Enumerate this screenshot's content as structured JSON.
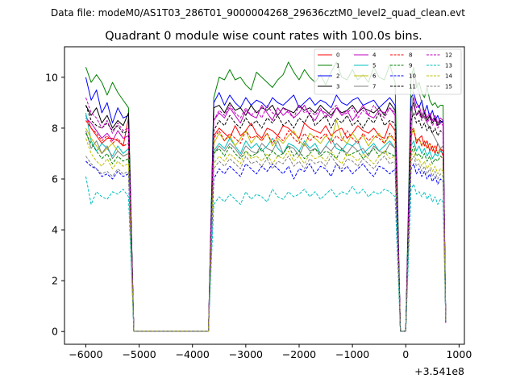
{
  "chart_data": {
    "type": "line",
    "suptitle": "Data file: modeM0/AS1T03_286T01_9000004268_29636cztM0_level2_quad_clean.evt",
    "title": "Quadrant 0 module wise count rates with 100.0s bins.",
    "xlabel": "",
    "ylabel": "",
    "x_offset_label": "+3.541e8",
    "xlim": [
      -6400,
      1100
    ],
    "ylim": [
      -0.5,
      11.2
    ],
    "xticks": [
      -6000,
      -5000,
      -4000,
      -3000,
      -2000,
      -1000,
      0,
      1000
    ],
    "xtick_labels": [
      "−6000",
      "−5000",
      "−4000",
      "−3000",
      "−2000",
      "−1000",
      "0",
      "1000"
    ],
    "yticks": [
      0,
      2,
      4,
      6,
      8,
      10
    ],
    "ytick_labels": [
      "0",
      "2",
      "4",
      "6",
      "8",
      "10"
    ],
    "grid": false,
    "legend_position": "top-right",
    "legend_columns": 4,
    "segments": [
      {
        "x_start": -6000,
        "x_end": -5200,
        "step": 100
      },
      {
        "x_start": -5100,
        "x_end": -3700,
        "step": 100
      },
      {
        "x_start": -3600,
        "x_end": -200,
        "step": 100
      },
      {
        "x_start": -100,
        "x_end": 0,
        "step": 100
      },
      {
        "x_start": 100,
        "x_end": 750,
        "step": 50
      }
    ],
    "series": [
      {
        "name": "0",
        "color": "#ff0000",
        "dash": "solid",
        "pre": [
          8.5,
          8.0,
          7.7,
          7.4,
          7.6,
          7.6,
          7.5,
          7.3,
          8.4
        ],
        "mid": [
          7.7,
          8.0,
          7.8,
          7.6,
          8.1,
          7.7,
          7.9,
          8.2,
          7.8,
          7.6,
          8.0,
          7.9,
          7.7,
          8.1,
          8.0,
          7.8,
          7.6,
          8.2,
          8.0,
          7.9,
          7.8,
          8.1,
          7.7,
          7.9,
          8.0,
          7.6,
          7.8,
          8.1,
          7.9,
          7.8,
          8.0,
          7.7,
          7.6,
          8.2,
          7.9
        ],
        "post": [
          7.9,
          8.0,
          7.4,
          7.6,
          7.7,
          7.3,
          7.5,
          7.1,
          7.3,
          7.0,
          7.4,
          7.2,
          6.9,
          7.0
        ]
      },
      {
        "name": "1",
        "color": "#008000",
        "dash": "solid",
        "pre": [
          10.4,
          9.8,
          10.1,
          9.8,
          9.3,
          9.8,
          9.4,
          9.1,
          8.8
        ],
        "mid": [
          9.2,
          10.0,
          9.9,
          10.3,
          9.9,
          10.0,
          9.7,
          9.5,
          10.2,
          10.0,
          9.8,
          9.6,
          9.9,
          10.1,
          10.6,
          10.2,
          9.9,
          10.3,
          10.0,
          9.8,
          10.1,
          9.7,
          10.2,
          10.6,
          10.0,
          9.9,
          10.3,
          9.9,
          10.1,
          9.8,
          10.4,
          10.0,
          9.9,
          10.5,
          9.8
        ],
        "post": [
          10.0,
          10.4,
          9.6,
          9.8,
          9.4,
          9.2,
          9.6,
          9.1,
          8.9,
          9.0,
          8.8,
          8.9,
          8.9,
          9.0
        ]
      },
      {
        "name": "2",
        "color": "#0000ff",
        "dash": "solid",
        "pre": [
          10.0,
          9.1,
          9.5,
          8.6,
          9.0,
          8.2,
          8.8,
          8.4,
          8.5
        ],
        "mid": [
          9.0,
          9.4,
          8.9,
          9.3,
          9.0,
          8.8,
          9.2,
          8.9,
          9.1,
          9.0,
          8.8,
          9.2,
          9.0,
          8.9,
          9.1,
          9.3,
          8.8,
          9.0,
          9.2,
          8.9,
          9.1,
          9.0,
          8.8,
          9.3,
          9.0,
          8.9,
          9.1,
          9.2,
          8.9,
          9.0,
          9.1,
          8.8,
          9.0,
          9.2,
          8.9
        ],
        "post": [
          9.2,
          9.4,
          9.0,
          8.8,
          9.1,
          8.6,
          8.9,
          8.4,
          8.7,
          8.3,
          8.5,
          8.2,
          8.3,
          8.3
        ]
      },
      {
        "name": "3",
        "color": "#000000",
        "dash": "solid",
        "pre": [
          8.9,
          8.5,
          8.8,
          8.2,
          8.5,
          8.0,
          8.3,
          8.1,
          8.6
        ],
        "mid": [
          8.8,
          8.9,
          8.6,
          9.0,
          8.7,
          8.8,
          8.5,
          8.9,
          8.6,
          8.8,
          8.7,
          8.9,
          8.5,
          8.8,
          8.7,
          8.6,
          8.9,
          8.7,
          8.8,
          8.6,
          8.9,
          8.7,
          8.5,
          8.8,
          8.6,
          8.7,
          8.9,
          8.6,
          8.8,
          8.7,
          8.6,
          8.8,
          8.5,
          9.0,
          8.7
        ],
        "post": [
          8.8,
          9.0,
          8.5,
          8.7,
          8.4,
          8.6,
          8.3,
          8.5,
          8.2,
          8.4,
          8.1,
          8.3,
          8.2,
          8.4
        ]
      },
      {
        "name": "4",
        "color": "#bf00bf",
        "dash": "solid",
        "pre": [
          8.4,
          8.2,
          7.9,
          7.6,
          7.8,
          7.5,
          7.9,
          7.6,
          7.7
        ],
        "mid": [
          8.3,
          8.6,
          8.4,
          8.8,
          8.5,
          8.2,
          8.7,
          8.5,
          8.4,
          8.9,
          8.6,
          8.3,
          8.8,
          8.5,
          8.7,
          8.4,
          8.6,
          8.9,
          8.5,
          8.3,
          8.7,
          8.6,
          8.4,
          8.8,
          8.5,
          8.7,
          8.3,
          8.6,
          8.9,
          8.5,
          8.4,
          8.7,
          8.6,
          8.8,
          8.5
        ],
        "post": [
          8.6,
          9.2,
          8.8,
          8.9,
          8.5,
          8.7,
          8.4,
          8.6,
          8.3,
          8.5,
          8.2,
          8.4,
          8.3,
          8.5
        ]
      },
      {
        "name": "5",
        "color": "#00bfbf",
        "dash": "solid",
        "pre": [
          8.6,
          7.5,
          7.1,
          7.4,
          7.2,
          6.9,
          7.3,
          7.0,
          7.2
        ],
        "mid": [
          7.1,
          7.4,
          7.2,
          7.6,
          7.3,
          7.0,
          7.5,
          7.2,
          7.4,
          7.1,
          7.3,
          7.6,
          7.2,
          7.0,
          7.4,
          7.3,
          7.1,
          7.5,
          7.2,
          7.4,
          7.0,
          7.3,
          7.6,
          7.2,
          7.1,
          7.4,
          7.3,
          7.5,
          7.0,
          7.2,
          7.4,
          7.1,
          7.3,
          7.5,
          7.2
        ],
        "post": [
          7.3,
          7.5,
          7.1,
          7.3,
          7.0,
          7.2,
          6.9,
          7.1,
          6.8,
          7.0,
          6.9,
          7.1,
          7.0,
          7.2
        ]
      },
      {
        "name": "6",
        "color": "#bfbf00",
        "dash": "solid",
        "pre": [
          8.0,
          7.6,
          7.3,
          7.0,
          7.2,
          7.4,
          7.1,
          6.9,
          7.0
        ],
        "mid": [
          7.4,
          7.8,
          7.5,
          7.7,
          7.3,
          7.6,
          7.9,
          7.4,
          7.7,
          7.5,
          7.8,
          7.3,
          7.6,
          7.4,
          7.7,
          7.9,
          7.5,
          7.3,
          7.8,
          7.6,
          7.4,
          7.7,
          7.5,
          8.3,
          7.6,
          7.4,
          7.8,
          7.5,
          7.7,
          7.3,
          7.6,
          7.8,
          7.4,
          7.7,
          7.5
        ],
        "post": [
          7.7,
          8.0,
          7.5,
          7.6,
          7.3,
          7.5,
          7.2,
          7.4,
          7.1,
          7.3,
          7.0,
          7.2,
          7.1,
          7.3
        ]
      },
      {
        "name": "7",
        "color": "#808080",
        "dash": "solid",
        "pre": [
          7.9,
          7.2,
          7.5,
          7.0,
          7.3,
          6.8,
          7.1,
          6.9,
          7.0
        ],
        "mid": [
          7.0,
          7.3,
          7.1,
          7.4,
          7.2,
          6.9,
          7.3,
          7.1,
          7.0,
          7.4,
          7.2,
          7.1,
          7.5,
          7.0,
          7.3,
          7.2,
          6.9,
          7.4,
          7.1,
          7.2,
          7.0,
          7.3,
          7.1,
          7.4,
          7.2,
          7.0,
          7.3,
          7.1,
          7.2,
          6.9,
          7.3,
          7.1,
          7.0,
          7.4,
          7.2
        ],
        "post": [
          7.2,
          10.2,
          9.8,
          9.4,
          9.0,
          8.4,
          8.2,
          8.0,
          7.8,
          7.6,
          7.4,
          7.2,
          7.3,
          7.5
        ]
      },
      {
        "name": "8",
        "color": "#ff0000",
        "dash": "dashed",
        "pre": [
          8.3,
          8.0,
          7.8,
          7.5,
          7.7,
          7.4,
          7.6,
          7.3,
          7.4
        ],
        "mid": [
          7.6,
          7.9,
          7.5,
          7.8,
          7.6,
          7.4,
          7.9,
          7.6,
          7.7,
          7.5,
          7.8,
          7.4,
          7.7,
          7.5,
          7.9,
          7.6,
          7.4,
          7.8,
          7.5,
          7.7,
          7.6,
          7.8,
          7.4,
          7.7,
          7.5,
          7.9,
          7.6,
          7.4,
          7.8,
          7.5,
          7.7,
          7.6,
          7.4,
          7.8,
          7.5
        ],
        "post": [
          7.7,
          7.9,
          7.5,
          7.6,
          7.3,
          7.5,
          7.2,
          7.4,
          7.1,
          7.3,
          7.0,
          7.2,
          7.1,
          7.3
        ]
      },
      {
        "name": "9",
        "color": "#008000",
        "dash": "dashed",
        "pre": [
          7.8,
          7.4,
          7.1,
          6.8,
          7.0,
          6.6,
          6.9,
          6.7,
          6.8
        ],
        "mid": [
          7.0,
          7.2,
          6.9,
          7.3,
          7.0,
          6.8,
          7.1,
          6.9,
          7.0,
          7.2,
          6.8,
          7.1,
          6.9,
          7.0,
          7.3,
          6.9,
          7.1,
          6.8,
          7.0,
          7.2,
          6.9,
          7.1,
          7.0,
          6.8,
          7.2,
          6.9,
          7.0,
          7.1,
          6.8,
          7.0,
          7.2,
          6.9,
          7.1,
          7.0,
          6.9
        ],
        "post": [
          7.0,
          7.3,
          6.9,
          7.0,
          6.8,
          7.0,
          6.7,
          6.9,
          6.6,
          6.8,
          6.7,
          6.9,
          6.8,
          7.0
        ]
      },
      {
        "name": "10",
        "color": "#0000ff",
        "dash": "dashed",
        "pre": [
          6.7,
          6.5,
          6.4,
          6.1,
          6.2,
          6.0,
          6.3,
          6.1,
          6.2
        ],
        "mid": [
          6.0,
          6.4,
          6.2,
          6.5,
          6.3,
          6.1,
          6.6,
          6.4,
          6.2,
          6.5,
          6.3,
          6.6,
          6.4,
          6.2,
          6.5,
          6.0,
          6.4,
          6.3,
          6.6,
          6.2,
          6.5,
          6.4,
          6.1,
          6.6,
          6.3,
          6.5,
          6.2,
          6.4,
          6.6,
          6.3,
          6.1,
          6.5,
          6.4,
          6.2,
          6.4
        ],
        "post": [
          6.4,
          6.6,
          6.2,
          6.4,
          6.1,
          6.3,
          6.0,
          6.2,
          5.9,
          6.1,
          5.8,
          6.0,
          5.9,
          6.1
        ]
      },
      {
        "name": "11",
        "color": "#000000",
        "dash": "dashed",
        "pre": [
          8.9,
          8.3,
          8.1,
          8.0,
          8.2,
          7.9,
          8.1,
          7.8,
          7.9
        ],
        "mid": [
          7.9,
          8.3,
          8.1,
          8.5,
          8.2,
          8.0,
          8.4,
          8.1,
          8.3,
          8.0,
          8.4,
          8.2,
          8.5,
          8.1,
          8.3,
          8.0,
          8.4,
          8.2,
          8.6,
          8.1,
          8.3,
          8.5,
          8.0,
          8.4,
          8.2,
          8.5,
          8.1,
          8.3,
          8.0,
          8.4,
          8.2,
          8.6,
          8.1,
          8.3,
          8.2
        ],
        "post": [
          8.3,
          8.6,
          8.2,
          8.3,
          8.0,
          8.2,
          7.9,
          8.1,
          7.8,
          8.0,
          7.7,
          7.9,
          7.8,
          8.0
        ]
      },
      {
        "name": "12",
        "color": "#bf00bf",
        "dash": "dashed",
        "pre": [
          9.2,
          8.6,
          8.4,
          8.0,
          8.3,
          7.8,
          8.2,
          7.9,
          8.0
        ],
        "mid": [
          8.3,
          8.7,
          8.5,
          8.9,
          8.6,
          8.4,
          8.8,
          8.5,
          8.7,
          8.4,
          8.9,
          8.6,
          8.5,
          8.8,
          8.6,
          8.4,
          8.9,
          8.6,
          8.7,
          8.5,
          8.8,
          8.4,
          8.7,
          8.9,
          8.5,
          8.6,
          8.8,
          8.4,
          8.7,
          8.5,
          8.9,
          8.6,
          8.4,
          8.8,
          8.6
        ],
        "post": [
          8.7,
          8.9,
          8.5,
          8.6,
          8.3,
          8.5,
          8.2,
          8.4,
          8.1,
          8.3,
          8.0,
          8.2,
          8.1,
          8.3
        ]
      },
      {
        "name": "13",
        "color": "#00bfbf",
        "dash": "dashed",
        "pre": [
          6.1,
          5.0,
          5.5,
          5.3,
          5.2,
          5.5,
          5.4,
          5.6,
          5.3
        ],
        "mid": [
          5.0,
          5.3,
          5.1,
          5.4,
          5.2,
          5.0,
          5.5,
          5.2,
          5.4,
          5.3,
          5.1,
          5.6,
          5.3,
          5.2,
          5.5,
          5.3,
          5.4,
          5.6,
          5.3,
          5.5,
          5.2,
          5.4,
          5.6,
          5.3,
          5.5,
          5.4,
          5.7,
          5.4,
          5.6,
          5.3,
          5.5,
          5.4,
          5.6,
          5.5,
          5.3
        ],
        "post": [
          5.6,
          5.8,
          5.4,
          5.5,
          5.3,
          5.5,
          5.2,
          5.4,
          5.1,
          5.3,
          5.0,
          5.2,
          5.1,
          5.3
        ]
      },
      {
        "name": "14",
        "color": "#bfbf00",
        "dash": "dashed",
        "pre": [
          7.6,
          7.0,
          6.7,
          6.5,
          6.8,
          6.4,
          6.7,
          6.5,
          6.6
        ],
        "mid": [
          6.6,
          6.9,
          6.7,
          7.0,
          6.8,
          6.6,
          7.1,
          6.8,
          6.9,
          6.7,
          7.0,
          6.6,
          6.9,
          6.8,
          7.1,
          6.7,
          6.9,
          6.6,
          7.0,
          6.8,
          6.9,
          6.7,
          7.1,
          6.8,
          6.6,
          7.0,
          6.9,
          6.7,
          7.0,
          6.8,
          6.6,
          6.9,
          7.1,
          6.8,
          6.9
        ],
        "post": [
          6.9,
          7.1,
          6.7,
          6.8,
          6.5,
          6.7,
          6.4,
          6.6,
          6.3,
          6.5,
          6.2,
          6.4,
          6.3,
          6.5
        ]
      },
      {
        "name": "15",
        "color": "#808080",
        "dash": "dashed",
        "pre": [
          6.9,
          6.6,
          6.4,
          6.2,
          6.3,
          6.1,
          6.4,
          6.2,
          6.3
        ],
        "mid": [
          6.4,
          6.7,
          6.5,
          6.8,
          6.6,
          6.4,
          6.9,
          6.6,
          6.7,
          6.5,
          6.8,
          6.4,
          6.7,
          6.6,
          6.9,
          6.5,
          6.7,
          6.4,
          6.8,
          6.6,
          6.7,
          6.5,
          6.9,
          6.6,
          6.4,
          6.8,
          6.7,
          6.5,
          6.8,
          6.6,
          6.4,
          6.7,
          6.9,
          6.6,
          6.7
        ],
        "post": [
          6.7,
          6.9,
          6.5,
          6.6,
          6.3,
          6.5,
          6.2,
          6.4,
          6.1,
          6.3,
          6.0,
          6.2,
          6.1,
          6.3
        ]
      }
    ]
  }
}
